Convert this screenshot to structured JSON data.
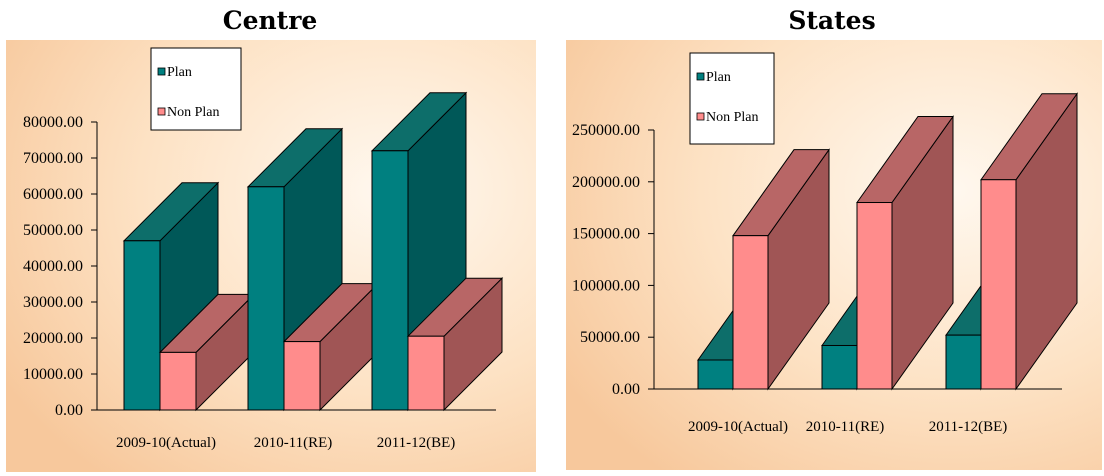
{
  "charts": [
    {
      "panel_title": "Centre",
      "legend": {
        "plan": "Plan",
        "nonplan": "Non Plan"
      },
      "y_tick_labels": [
        "0.00",
        "10000.00",
        "20000.00",
        "30000.00",
        "40000.00",
        "50000.00",
        "60000.00",
        "70000.00",
        "80000.00"
      ],
      "x_tick_labels": [
        "2009-10(Actual)",
        "2010-11(RE)",
        "2011-12(BE)"
      ]
    },
    {
      "panel_title": "States",
      "legend": {
        "plan": "Plan",
        "nonplan": "Non Plan"
      },
      "y_tick_labels": [
        "0.00",
        "50000.00",
        "100000.00",
        "150000.00",
        "200000.00",
        "250000.00"
      ],
      "x_tick_labels": [
        "2009-10(Actual)",
        "2010-11(RE)",
        "2011-12(BE)"
      ]
    }
  ],
  "colors": {
    "plan_front": "#008080",
    "plan_side": "#005858",
    "plan_top": "#0d6e6a",
    "nonplan_front": "#ff8c8c",
    "nonplan_side": "#a05555",
    "nonplan_top": "#b86666",
    "bg_light": "#fff8ef",
    "bg_warm": "#f7c89c"
  },
  "chart_data": [
    {
      "type": "bar",
      "title": "Centre",
      "categories": [
        "2009-10(Actual)",
        "2010-11(RE)",
        "2011-12(BE)"
      ],
      "series": [
        {
          "name": "Plan",
          "values": [
            47000,
            62000,
            72000
          ]
        },
        {
          "name": "Non Plan",
          "values": [
            16000,
            19000,
            20500
          ]
        }
      ],
      "ylim": [
        0,
        80000
      ],
      "yticks": [
        0,
        10000,
        20000,
        30000,
        40000,
        50000,
        60000,
        70000,
        80000
      ],
      "legend_position": "top-left",
      "grid": false,
      "three_d": true
    },
    {
      "type": "bar",
      "title": "States",
      "categories": [
        "2009-10(Actual)",
        "2010-11(RE)",
        "2011-12(BE)"
      ],
      "series": [
        {
          "name": "Plan",
          "values": [
            28000,
            42000,
            52000
          ]
        },
        {
          "name": "Non Plan",
          "values": [
            148000,
            180000,
            202000
          ]
        }
      ],
      "ylim": [
        0,
        250000
      ],
      "yticks": [
        0,
        50000,
        100000,
        150000,
        200000,
        250000
      ],
      "legend_position": "top-left",
      "grid": false,
      "three_d": true
    }
  ]
}
